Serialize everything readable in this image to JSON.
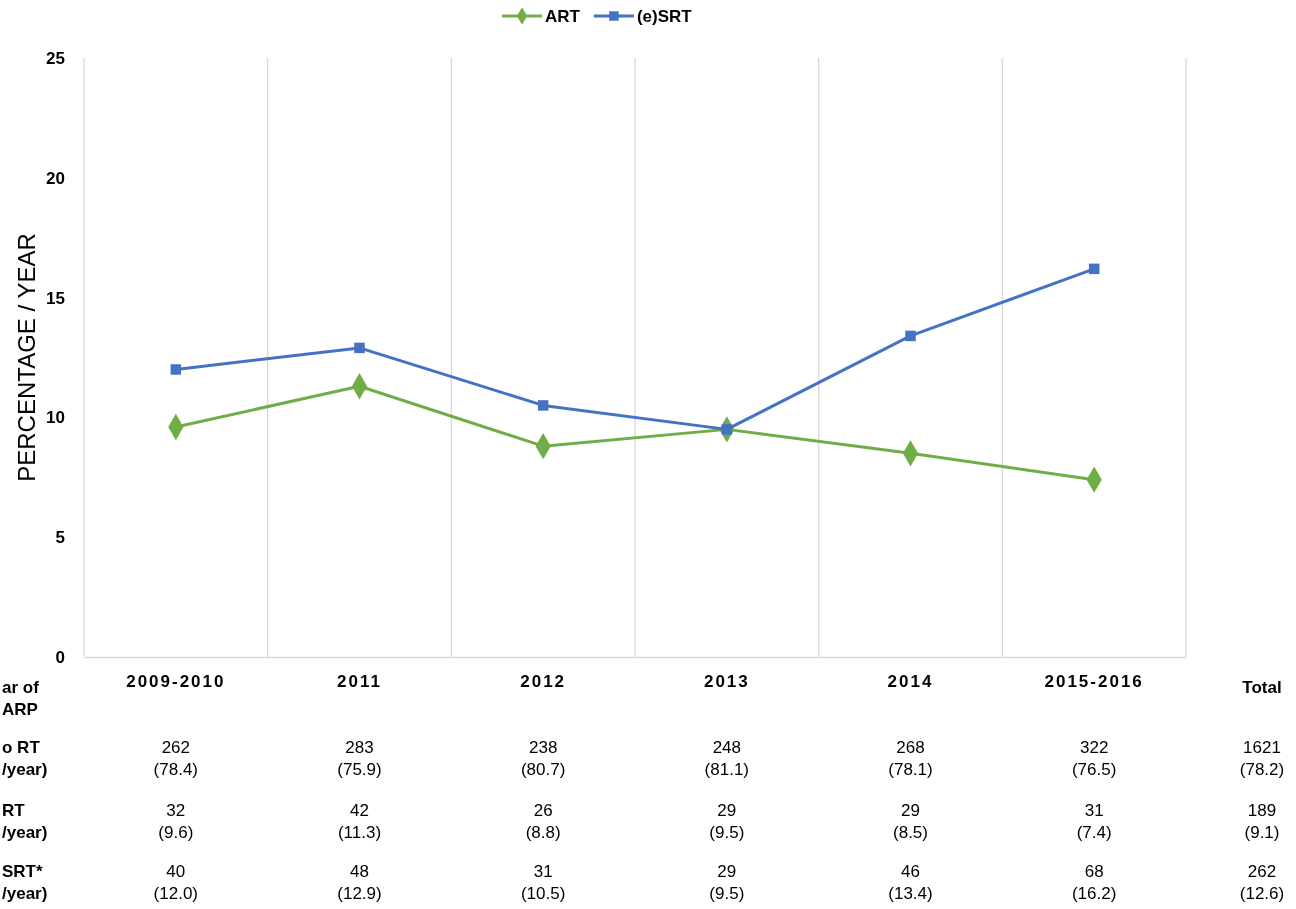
{
  "chart_data": {
    "type": "line",
    "ylabel": "PERCENTAGE / YEAR",
    "categories": [
      "2009-2010",
      "2011",
      "2012",
      "2013",
      "2014",
      "2015-2016"
    ],
    "series": [
      {
        "name": "ART",
        "color": "#70ad47",
        "marker": "diamond",
        "values": [
          9.6,
          11.3,
          8.8,
          9.5,
          8.5,
          7.4
        ]
      },
      {
        "name": "(e)SRT",
        "color": "#4472c4",
        "marker": "square",
        "values": [
          12.0,
          12.9,
          10.5,
          9.5,
          13.4,
          16.2
        ]
      }
    ],
    "ylim": [
      0,
      25
    ],
    "yticks": [
      0,
      5,
      10,
      15,
      20,
      25
    ],
    "grid": "x",
    "legend": "top",
    "line_style": "solid",
    "annotations": [
      "ar of\nARP",
      "o RT\n/year)",
      "RT\n/year)",
      "SRT*\n/year)",
      "Total",
      "262\n(78.4)",
      "283\n(75.9)",
      "238\n(80.7)",
      "248\n(81.1)",
      "268\n(78.1)",
      "322\n(76.5)",
      "1621\n(78.2)",
      "32\n(9.6)",
      "42\n(11.3)",
      "26\n(8.8)",
      "29\n(9.5)",
      "29\n(8.5)",
      "31\n(7.4)",
      "189\n(9.1)",
      "40\n(12.0)",
      "48\n(12.9)",
      "31\n(10.5)",
      "29\n(9.5)",
      "46\n(13.4)",
      "68\n(16.2)",
      "262\n(12.6)"
    ]
  }
}
